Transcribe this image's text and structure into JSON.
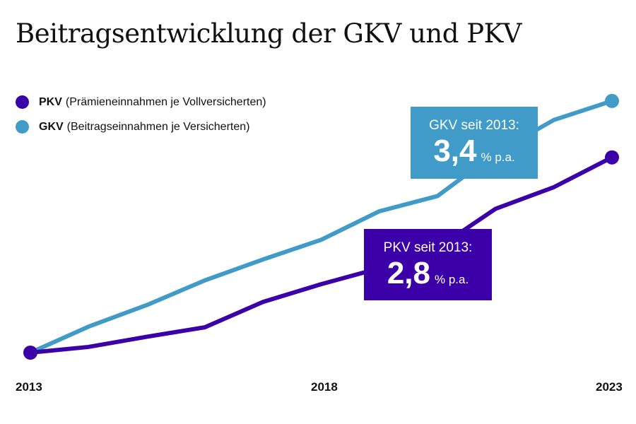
{
  "chart_data": {
    "type": "line",
    "title": "Beitragsentwicklung der GKV und PKV",
    "x": [
      2013,
      2014,
      2015,
      2016,
      2017,
      2018,
      2019,
      2020,
      2021,
      2022,
      2023
    ],
    "x_tick_labels": [
      "2013",
      "2018",
      "2023"
    ],
    "grid": false,
    "legend_placement": "top-left",
    "series": [
      {
        "key": "PKV",
        "name": "PKV",
        "description": "(Prämieneinnahmen je Vollversicherten)",
        "color": "#3c00a8",
        "values": [
          100,
          100.9,
          102.5,
          104.0,
          108.0,
          110.8,
          113.3,
          116.5,
          122.7,
          126.1,
          130.8
        ]
      },
      {
        "key": "GKV",
        "name": "GKV",
        "description": "(Beitragseinnahmen je Versicherten)",
        "color": "#409bc8",
        "values": [
          100,
          104.1,
          107.5,
          111.4,
          114.7,
          117.8,
          122.3,
          124.7,
          131.5,
          136.7,
          139.7
        ]
      }
    ],
    "annotations": {
      "gkv": {
        "label": "GKV seit 2013:",
        "value": "3,4",
        "unit": "% p.a."
      },
      "pkv": {
        "label": "PKV seit 2013:",
        "value": "2,8",
        "unit": "% p.a."
      }
    }
  }
}
